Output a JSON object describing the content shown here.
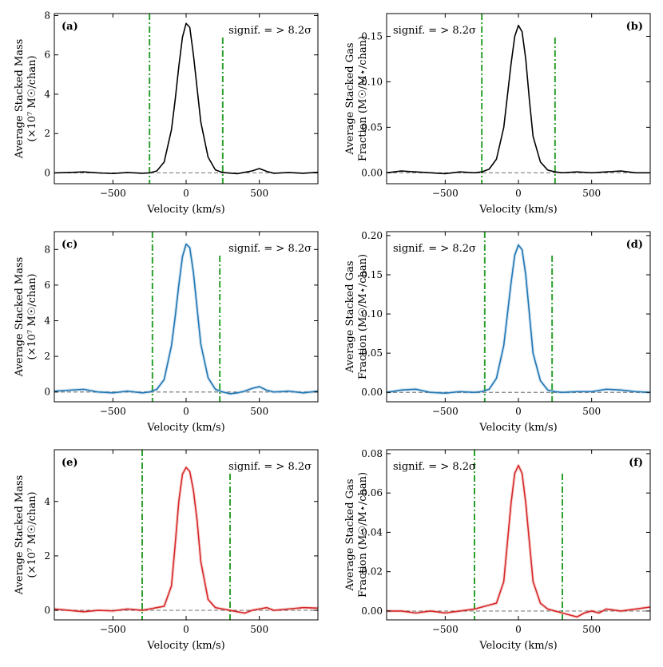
{
  "chart_data": [
    {
      "type": "line",
      "panel_label": "(a)",
      "annotation": "signif. = > 8.2σ",
      "annotation_pos": "top-right",
      "label_pos": "top-left",
      "xlabel": "Velocity (km/s)",
      "ylabel": [
        "Average Stacked Mass",
        "(×10⁷ M☉/chan)"
      ],
      "xlim": [
        -900,
        900
      ],
      "ylim": [
        -0.55,
        8.1
      ],
      "xticks": [
        -500,
        0,
        500
      ],
      "xtick_labels": [
        "−500",
        "0",
        "500"
      ],
      "yticks": [
        0,
        2,
        4,
        6,
        8
      ],
      "ytick_labels": [
        "0",
        "2",
        "4",
        "6",
        "8"
      ],
      "series": [
        {
          "color": "#000000",
          "x": [
            -900,
            -800,
            -700,
            -600,
            -500,
            -400,
            -300,
            -250,
            -200,
            -150,
            -100,
            -75,
            -50,
            -25,
            0,
            25,
            50,
            75,
            100,
            150,
            200,
            250,
            300,
            350,
            400,
            450,
            500,
            550,
            600,
            700,
            800,
            900
          ],
          "values": [
            0.0,
            0.02,
            0.05,
            0.0,
            -0.03,
            0.02,
            -0.02,
            0.0,
            0.1,
            0.55,
            2.2,
            3.7,
            5.4,
            6.9,
            7.6,
            7.4,
            6.0,
            4.3,
            2.6,
            0.8,
            0.15,
            0.02,
            -0.01,
            -0.04,
            0.03,
            0.1,
            0.22,
            0.08,
            -0.02,
            0.02,
            -0.02,
            0.03
          ]
        }
      ],
      "vlines": [
        -250,
        250
      ],
      "hline": 0
    },
    {
      "type": "line",
      "panel_label": "(b)",
      "annotation": "signif. = > 8.2σ",
      "annotation_pos": "top-left",
      "label_pos": "top-right",
      "xlabel": "Velocity (km/s)",
      "ylabel": [
        "Average Stacked Gas",
        "Fraction (M☉/M⋆/chan)"
      ],
      "xlim": [
        -900,
        900
      ],
      "ylim": [
        -0.012,
        0.175
      ],
      "xticks": [
        -500,
        0,
        500
      ],
      "xtick_labels": [
        "−500",
        "0",
        "500"
      ],
      "yticks": [
        0,
        0.05,
        0.1,
        0.15
      ],
      "ytick_labels": [
        "0.00",
        "0.05",
        "0.10",
        "0.15"
      ],
      "series": [
        {
          "color": "#000000",
          "x": [
            -900,
            -800,
            -700,
            -600,
            -500,
            -400,
            -300,
            -250,
            -200,
            -150,
            -100,
            -75,
            -50,
            -25,
            0,
            25,
            50,
            75,
            100,
            150,
            200,
            250,
            300,
            400,
            500,
            600,
            700,
            800,
            900
          ],
          "values": [
            0.0,
            0.002,
            0.001,
            0.0,
            -0.001,
            0.001,
            0.0,
            0.001,
            0.004,
            0.015,
            0.05,
            0.085,
            0.12,
            0.15,
            0.162,
            0.155,
            0.125,
            0.08,
            0.04,
            0.012,
            0.003,
            0.001,
            0.0,
            0.001,
            0.0,
            0.001,
            0.002,
            0.0,
            0.0
          ]
        }
      ],
      "vlines": [
        -250,
        250
      ],
      "hline": 0
    },
    {
      "type": "line",
      "panel_label": "(c)",
      "annotation": "signif. = > 8.2σ",
      "annotation_pos": "top-right",
      "label_pos": "top-left",
      "xlabel": "Velocity (km/s)",
      "ylabel": [
        "Average Stacked Mass",
        "(×10⁷ M☉/chan)"
      ],
      "xlim": [
        -900,
        900
      ],
      "ylim": [
        -0.55,
        9.0
      ],
      "xticks": [
        -500,
        0,
        500
      ],
      "xtick_labels": [
        "−500",
        "0",
        "500"
      ],
      "yticks": [
        0,
        2,
        4,
        6,
        8
      ],
      "ytick_labels": [
        "0",
        "2",
        "4",
        "6",
        "8"
      ],
      "series": [
        {
          "color": "#1f77b4",
          "x": [
            -900,
            -800,
            -700,
            -600,
            -500,
            -400,
            -300,
            -250,
            -200,
            -150,
            -100,
            -75,
            -50,
            -25,
            0,
            25,
            50,
            75,
            100,
            150,
            200,
            250,
            300,
            350,
            400,
            450,
            500,
            550,
            600,
            700,
            800,
            900
          ],
          "values": [
            0.05,
            0.1,
            0.15,
            0.0,
            -0.05,
            0.05,
            -0.05,
            0.0,
            0.15,
            0.7,
            2.6,
            4.2,
            6.0,
            7.6,
            8.3,
            8.1,
            6.7,
            4.7,
            2.7,
            0.8,
            0.15,
            0.0,
            -0.1,
            -0.05,
            0.05,
            0.2,
            0.3,
            0.1,
            0.0,
            0.05,
            -0.05,
            0.05
          ]
        }
      ],
      "vlines": [
        -230,
        230
      ],
      "hline": 0
    },
    {
      "type": "line",
      "panel_label": "(d)",
      "annotation": "signif. = > 8.2σ",
      "annotation_pos": "top-left",
      "label_pos": "top-right",
      "xlabel": "Velocity (km/s)",
      "ylabel": [
        "Average Stacked Gas",
        "Fraction (M☉/M⋆/chan)"
      ],
      "xlim": [
        -900,
        900
      ],
      "ylim": [
        -0.012,
        0.205
      ],
      "xticks": [
        -500,
        0,
        500
      ],
      "xtick_labels": [
        "−500",
        "0",
        "500"
      ],
      "yticks": [
        0,
        0.05,
        0.1,
        0.15,
        0.2
      ],
      "ytick_labels": [
        "0.00",
        "0.05",
        "0.10",
        "0.15",
        "0.20"
      ],
      "series": [
        {
          "color": "#1f77b4",
          "x": [
            -900,
            -800,
            -700,
            -600,
            -500,
            -400,
            -300,
            -250,
            -200,
            -150,
            -100,
            -75,
            -50,
            -25,
            0,
            25,
            50,
            75,
            100,
            150,
            200,
            250,
            300,
            400,
            500,
            600,
            700,
            800,
            900
          ],
          "values": [
            0.0,
            0.003,
            0.004,
            0.0,
            -0.001,
            0.001,
            0.0,
            0.001,
            0.004,
            0.018,
            0.06,
            0.1,
            0.14,
            0.175,
            0.188,
            0.182,
            0.15,
            0.1,
            0.05,
            0.015,
            0.003,
            0.001,
            0.0,
            0.001,
            0.001,
            0.004,
            0.003,
            0.001,
            0.0
          ]
        }
      ],
      "vlines": [
        -230,
        230
      ],
      "hline": 0
    },
    {
      "type": "line",
      "panel_label": "(e)",
      "annotation": "signif. = > 8.2σ",
      "annotation_pos": "top-right",
      "label_pos": "top-left",
      "xlabel": "Velocity (km/s)",
      "ylabel": [
        "Average Stacked Mass",
        "(×10⁷ M☉/chan)"
      ],
      "xlim": [
        -900,
        900
      ],
      "ylim": [
        -0.35,
        5.9
      ],
      "xticks": [
        -500,
        0,
        500
      ],
      "xtick_labels": [
        "−500",
        "0",
        "500"
      ],
      "yticks": [
        0,
        2,
        4
      ],
      "ytick_labels": [
        "0",
        "2",
        "4"
      ],
      "series": [
        {
          "color": "#d62728",
          "x": [
            -900,
            -800,
            -700,
            -600,
            -500,
            -400,
            -300,
            -250,
            -200,
            -150,
            -100,
            -75,
            -50,
            -25,
            0,
            25,
            50,
            75,
            100,
            150,
            200,
            250,
            300,
            350,
            400,
            450,
            500,
            550,
            600,
            700,
            800,
            900
          ],
          "values": [
            0.05,
            0.0,
            -0.05,
            0.0,
            -0.02,
            0.05,
            0.0,
            0.05,
            0.1,
            0.15,
            0.9,
            2.4,
            4.0,
            5.0,
            5.25,
            5.1,
            4.4,
            3.3,
            1.8,
            0.4,
            0.1,
            0.05,
            0.0,
            -0.05,
            -0.1,
            0.0,
            0.05,
            0.1,
            0.0,
            0.05,
            0.1,
            0.08
          ]
        }
      ],
      "vlines": [
        -300,
        300
      ],
      "hline": 0
    },
    {
      "type": "line",
      "panel_label": "(f)",
      "annotation": "signif. = > 8.2σ",
      "annotation_pos": "top-left",
      "label_pos": "top-right",
      "xlabel": "Velocity (km/s)",
      "ylabel": [
        "Average Stacked Gas",
        "Fraction (M☉/M⋆/chan)"
      ],
      "xlim": [
        -900,
        900
      ],
      "ylim": [
        -0.0045,
        0.082
      ],
      "xticks": [
        -500,
        0,
        500
      ],
      "xtick_labels": [
        "−500",
        "0",
        "500"
      ],
      "yticks": [
        0,
        0.02,
        0.04,
        0.06,
        0.08
      ],
      "ytick_labels": [
        "0.00",
        "0.02",
        "0.04",
        "0.06",
        "0.08"
      ],
      "series": [
        {
          "color": "#d62728",
          "x": [
            -900,
            -800,
            -700,
            -600,
            -500,
            -400,
            -300,
            -250,
            -200,
            -150,
            -100,
            -75,
            -50,
            -25,
            0,
            25,
            50,
            75,
            100,
            150,
            200,
            250,
            300,
            350,
            400,
            450,
            500,
            550,
            600,
            700,
            800,
            900
          ],
          "values": [
            0.0,
            0.0,
            -0.001,
            0.0,
            -0.001,
            0.0,
            0.001,
            0.002,
            0.003,
            0.004,
            0.015,
            0.035,
            0.055,
            0.07,
            0.074,
            0.07,
            0.055,
            0.035,
            0.015,
            0.004,
            0.001,
            0.0,
            -0.001,
            -0.002,
            -0.003,
            -0.001,
            0.0,
            -0.001,
            0.001,
            0.0,
            0.001,
            0.002
          ]
        }
      ],
      "vlines": [
        -300,
        300
      ],
      "hline": 0
    }
  ]
}
